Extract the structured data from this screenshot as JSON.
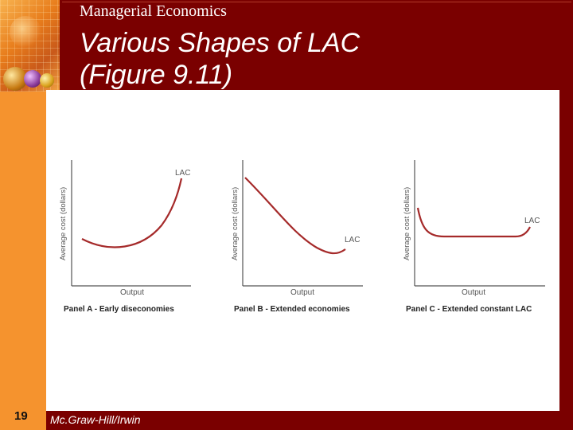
{
  "header": {
    "subject": "Managerial Economics",
    "title_line1": "Various Shapes of LAC",
    "title_line2": "(Figure 9.11)"
  },
  "panels": [
    {
      "ylabel": "Average cost (dollars)",
      "xlabel": "Output",
      "curve_label": "LAC",
      "caption": "Panel A - Early diseconomies"
    },
    {
      "ylabel": "Average cost (dollars)",
      "xlabel": "Output",
      "curve_label": "LAC",
      "caption": "Panel B - Extended economies"
    },
    {
      "ylabel": "Average cost (dollars)",
      "xlabel": "Output",
      "curve_label": "LAC",
      "caption": "Panel C - Extended constant LAC"
    }
  ],
  "footer": {
    "slide_number": "19",
    "publisher": "Mc.Graw-Hill/Irwin"
  },
  "colors": {
    "background": "#7a0000",
    "left_strip": "#f5932e",
    "curve": "#a52a2a"
  },
  "icons": {
    "logo": "decorative-orbs-logo"
  }
}
